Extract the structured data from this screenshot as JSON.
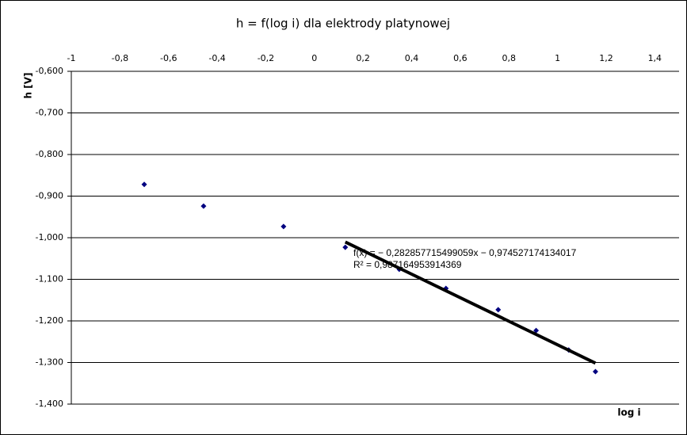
{
  "chart_data": {
    "type": "scatter",
    "title": "h = f(log i) dla elektrody platynowej",
    "x_label": "log i",
    "y_label": "h [V]",
    "series": [
      {
        "color": "#000080",
        "x": [
          -0.7,
          -0.456,
          -0.127,
          0.127,
          0.349,
          0.541,
          0.756,
          0.912,
          1.046,
          1.156
        ],
        "values": [
          -0.872,
          -0.924,
          -0.973,
          -1.023,
          -1.076,
          -1.122,
          -1.173,
          -1.223,
          -1.27,
          -1.322
        ]
      }
    ],
    "trendline": {
      "equation": "f(x) = − 0,282857715499059x − 0,974527174134017",
      "r2": "R² = 0,987164953914369",
      "slope": -0.282857715499059,
      "intercept": -0.974527174134017,
      "x": [
        0.127,
        1.156
      ],
      "color": "#000000"
    },
    "xlim": [
      -1,
      1.5
    ],
    "xticks": [
      -1,
      {
        "value": -0.8,
        "label": "-0,8"
      },
      {
        "value": -0.6,
        "label": "-0,6"
      },
      {
        "value": -0.4,
        "label": "-0,4"
      },
      {
        "value": -0.2,
        "label": "-0,2"
      },
      0,
      {
        "value": 0.2,
        "label": "0,2"
      },
      {
        "value": 0.4,
        "label": "0,4"
      },
      {
        "value": 0.6,
        "label": "0,6"
      },
      {
        "value": 0.8,
        "label": "0,8"
      },
      1,
      {
        "value": 1.2,
        "label": "1,2"
      },
      {
        "value": 1.4,
        "label": "1,4"
      }
    ],
    "ylim": [
      -1.4,
      -0.6
    ],
    "yticks": [
      {
        "value": -0.6,
        "label": "-0,600"
      },
      {
        "value": -0.7,
        "label": "-0,700"
      },
      {
        "value": -0.8,
        "label": "-0,800"
      },
      {
        "value": -0.9,
        "label": "-0,900"
      },
      {
        "value": -1.0,
        "label": "-1,000"
      },
      {
        "value": -1.1,
        "label": "-1,100"
      },
      {
        "value": -1.2,
        "label": "-1,200"
      },
      {
        "value": -1.3,
        "label": "-1,300"
      },
      {
        "value": -1.4,
        "label": "-1,400"
      }
    ],
    "grid": true
  }
}
